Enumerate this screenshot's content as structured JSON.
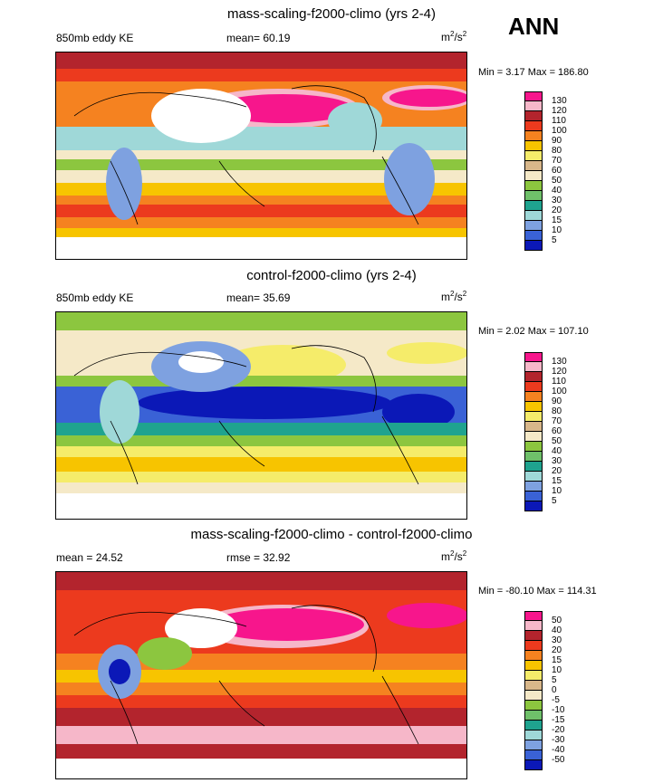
{
  "season": "ANN",
  "panels": [
    {
      "title": "mass-scaling-f2000-climo (yrs 2-4)",
      "left_label": "850mb eddy KE",
      "center_label": "mean=  60.19",
      "units_base": "m",
      "units_sup1": "2",
      "units_mid": "/s",
      "units_sup2": "2",
      "minmax": "Min =   3.17 Max = 186.80",
      "levels": [
        "130",
        "120",
        "110",
        "100",
        "90",
        "80",
        "70",
        "60",
        "50",
        "40",
        "30",
        "20",
        "15",
        "10",
        "5"
      ],
      "colors": [
        "#f7168c",
        "#f6b7c9",
        "#b3242d",
        "#ec3a1e",
        "#f58220",
        "#f7c400",
        "#f5ec6a",
        "#d8b78a",
        "#f5e9c8",
        "#8cc63f",
        "#6fc06a",
        "#1fa38f",
        "#9fd8d8",
        "#7ea1e0",
        "#3a62d6",
        "#0b18b7",
        "#9a73d6"
      ]
    },
    {
      "title": "control-f2000-climo (yrs 2-4)",
      "left_label": "850mb eddy KE",
      "center_label": "mean=  35.69",
      "units_base": "m",
      "units_sup1": "2",
      "units_mid": "/s",
      "units_sup2": "2",
      "minmax": "Min =   2.02 Max = 107.10",
      "levels": [
        "130",
        "120",
        "110",
        "100",
        "90",
        "80",
        "70",
        "60",
        "50",
        "40",
        "30",
        "20",
        "15",
        "10",
        "5"
      ],
      "colors": [
        "#f7168c",
        "#f6b7c9",
        "#b3242d",
        "#ec3a1e",
        "#f58220",
        "#f7c400",
        "#f5ec6a",
        "#d8b78a",
        "#f5e9c8",
        "#8cc63f",
        "#6fc06a",
        "#1fa38f",
        "#9fd8d8",
        "#7ea1e0",
        "#3a62d6",
        "#0b18b7",
        "#9a73d6"
      ]
    },
    {
      "title": "mass-scaling-f2000-climo - control-f2000-climo",
      "left_label": "mean =  24.52",
      "center_label": "rmse =  32.92",
      "units_base": "m",
      "units_sup1": "2",
      "units_mid": "/s",
      "units_sup2": "2",
      "minmax": "Min = -80.10 Max = 114.31",
      "levels": [
        "50",
        "40",
        "30",
        "20",
        "15",
        "10",
        "5",
        "0",
        "-5",
        "-10",
        "-15",
        "-20",
        "-30",
        "-40",
        "-50"
      ],
      "colors": [
        "#f7168c",
        "#f6b7c9",
        "#b3242d",
        "#ec3a1e",
        "#f58220",
        "#f7c400",
        "#f5ec6a",
        "#d8b78a",
        "#f5e9c8",
        "#8cc63f",
        "#6fc06a",
        "#1fa38f",
        "#9fd8d8",
        "#7ea1e0",
        "#3a62d6",
        "#0b18b7",
        "#9a73d6"
      ]
    }
  ]
}
